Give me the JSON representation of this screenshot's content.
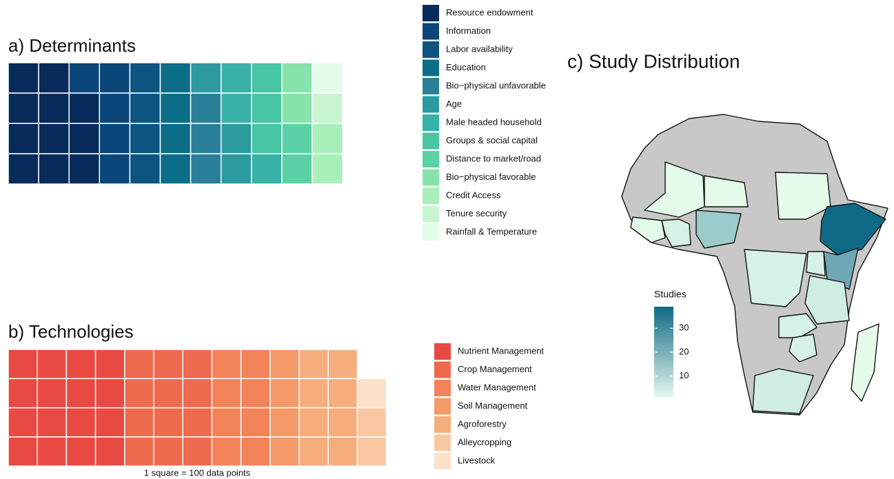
{
  "chart_data": [
    {
      "type": "waffle",
      "title": "a) Determinants",
      "rows": 4,
      "categories": [
        "Resource endowment",
        "Information",
        "Labor availability",
        "Education",
        "Bio−physical unfavorable",
        "Age",
        "Male headed household",
        "Groups & social capital",
        "Distance to market/road",
        "Bio−physical favorable",
        "Credit Access",
        "Tenure security",
        "Rainfall & Temperature"
      ],
      "values": [
        11,
        5,
        4,
        4,
        3,
        3,
        3,
        3,
        2,
        2,
        2,
        1,
        1
      ],
      "colors": [
        "#072b5a",
        "#0a467a",
        "#0d5580",
        "#0b6e88",
        "#297f98",
        "#2b9ba0",
        "#38b2a6",
        "#48c5a3",
        "#5bd2a5",
        "#86e4ab",
        "#a8efba",
        "#c7f5d1",
        "#e4fbe9"
      ]
    },
    {
      "type": "waffle",
      "title": "b) Technologies",
      "rows": 4,
      "note": "1 square = 100 data points",
      "categories": [
        "Nutrient Management",
        "Crop Management",
        "Water Management",
        "Soil Management",
        "Agroforestry",
        "Alleycropping",
        "Livestock"
      ],
      "values": [
        16,
        12,
        8,
        4,
        8,
        2,
        1
      ],
      "colors": [
        "#e84a43",
        "#ee6a4e",
        "#f28359",
        "#f49a68",
        "#f6ad7d",
        "#f9c8a3",
        "#fde1c8"
      ]
    },
    {
      "type": "map",
      "title": "c) Study Distribution",
      "legend_title": "Studies",
      "ylim": [
        1,
        39
      ],
      "yticks": [
        10,
        20,
        30
      ],
      "colors": [
        "#e6f8ee",
        "#0e6a85"
      ]
    }
  ]
}
